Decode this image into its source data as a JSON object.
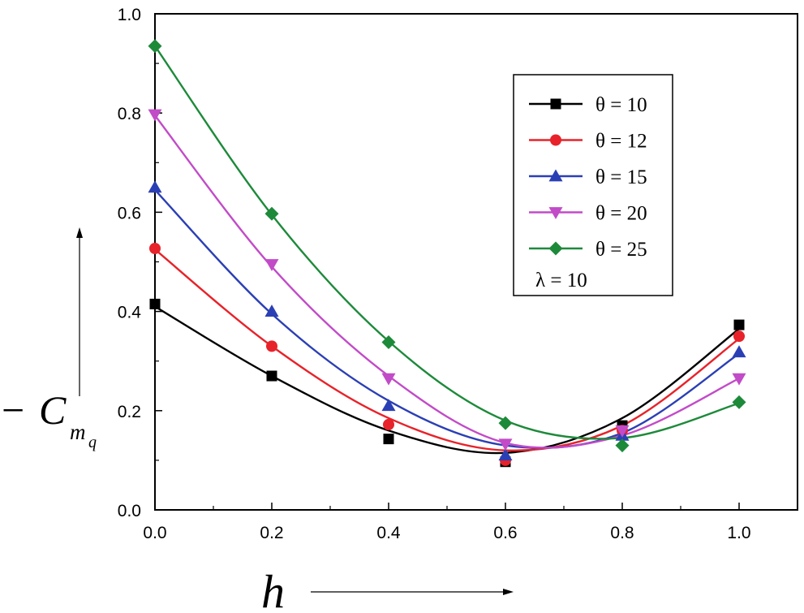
{
  "chart_data": {
    "type": "line",
    "x": [
      0.0,
      0.2,
      0.4,
      0.6,
      0.8,
      1.0
    ],
    "xlim": [
      0.0,
      1.1
    ],
    "ylim": [
      0.0,
      1.0
    ],
    "x_ticks": [
      0.0,
      0.2,
      0.4,
      0.6,
      0.8,
      1.0
    ],
    "y_ticks": [
      0.0,
      0.2,
      0.4,
      0.6,
      0.8,
      1.0
    ],
    "x_tick_labels": [
      "0.0",
      "0.2",
      "0.4",
      "0.6",
      "0.8",
      "1.0"
    ],
    "y_tick_labels": [
      "0.0",
      "0.2",
      "0.4",
      "0.6",
      "0.8",
      "1.0"
    ],
    "xlabel": "h",
    "ylabel": "− C",
    "ylabel_subscript": "m",
    "ylabel_subsubscript": "q",
    "legend_position": "top-right",
    "annotation": "λ = 10",
    "series": [
      {
        "name": "θ = 10",
        "color": "#000000",
        "marker": "square",
        "values": [
          0.415,
          0.27,
          0.143,
          0.097,
          0.17,
          0.373
        ],
        "fit": [
          0.41,
          0.27,
          0.16,
          0.115,
          0.185,
          0.365
        ]
      },
      {
        "name": "θ = 12",
        "color": "#e8222a",
        "marker": "circle",
        "values": [
          0.527,
          0.33,
          0.172,
          0.1,
          0.16,
          0.35
        ],
        "fit": [
          0.525,
          0.33,
          0.185,
          0.12,
          0.17,
          0.345
        ]
      },
      {
        "name": "θ = 15",
        "color": "#2b3fb5",
        "marker": "triangle-up",
        "values": [
          0.65,
          0.4,
          0.21,
          0.11,
          0.15,
          0.318
        ],
        "fit": [
          0.645,
          0.395,
          0.22,
          0.13,
          0.155,
          0.315
        ]
      },
      {
        "name": "θ = 20",
        "color": "#c24bc8",
        "marker": "triangle-down",
        "values": [
          0.797,
          0.495,
          0.265,
          0.133,
          0.16,
          0.265
        ],
        "fit": [
          0.795,
          0.49,
          0.27,
          0.135,
          0.15,
          0.265
        ]
      },
      {
        "name": "θ = 25",
        "color": "#1d8a3a",
        "marker": "diamond",
        "values": [
          0.935,
          0.597,
          0.338,
          0.175,
          0.13,
          0.217
        ],
        "fit": [
          0.935,
          0.595,
          0.34,
          0.18,
          0.145,
          0.215
        ]
      }
    ]
  }
}
